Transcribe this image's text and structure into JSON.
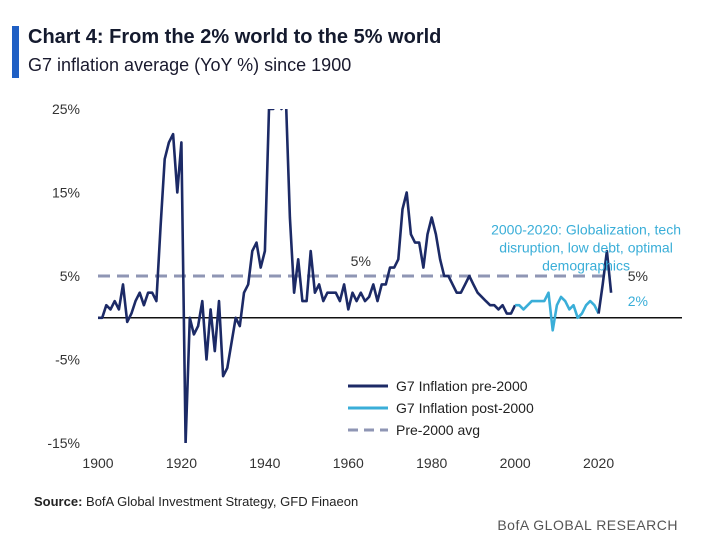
{
  "header": {
    "title": "Chart 4: From the 2% world to the 5% world",
    "subtitle": "G7 inflation average (YoY %) since 1900"
  },
  "footer": {
    "source_label": "Source:",
    "source_text": " BofA Global Investment Strategy, GFD Finaeon",
    "brand": "BofA GLOBAL RESEARCH"
  },
  "colors": {
    "pre2000": "#1c2a66",
    "post2000": "#3aaed8",
    "avg": "#8f96b4"
  },
  "chart_data": {
    "type": "line",
    "title": "Chart 4: From the 2% world to the 5% world",
    "subtitle": "G7 inflation average (YoY %) since 1900",
    "xlim": [
      1900,
      2040
    ],
    "ylim": [
      -15,
      25
    ],
    "x_ticks": [
      1900,
      1920,
      1940,
      1960,
      1980,
      2000,
      2020
    ],
    "x_tick_labels": [
      "1900",
      "1920",
      "1940",
      "1960",
      "1980",
      "2000",
      "2020"
    ],
    "y_ticks": [
      -15,
      -5,
      5,
      15,
      25
    ],
    "y_tick_labels": [
      "-15%",
      "-5%",
      "5%",
      "15%",
      "25%"
    ],
    "series": [
      {
        "name": "G7 Inflation pre-2000",
        "x": [
          1900,
          1901,
          1902,
          1903,
          1904,
          1905,
          1906,
          1907,
          1908,
          1909,
          1910,
          1911,
          1912,
          1913,
          1914,
          1915,
          1916,
          1917,
          1918,
          1919,
          1920,
          1921,
          1922,
          1923,
          1924,
          1925,
          1926,
          1927,
          1928,
          1929,
          1930,
          1931,
          1932,
          1933,
          1934,
          1935,
          1936,
          1937,
          1938,
          1939,
          1940,
          1941,
          1942,
          1943,
          1944,
          1945,
          1946,
          1947,
          1948,
          1949,
          1950,
          1951,
          1952,
          1953,
          1954,
          1955,
          1956,
          1957,
          1958,
          1959,
          1960,
          1961,
          1962,
          1963,
          1964,
          1965,
          1966,
          1967,
          1968,
          1969,
          1970,
          1971,
          1972,
          1973,
          1974,
          1975,
          1976,
          1977,
          1978,
          1979,
          1980,
          1981,
          1982,
          1983,
          1984,
          1985,
          1986,
          1987,
          1988,
          1989,
          1990,
          1991,
          1992,
          1993,
          1994,
          1995,
          1996,
          1997,
          1998,
          1999,
          2000
        ],
        "y": [
          0,
          0,
          1.5,
          1,
          2,
          1,
          4,
          -0.5,
          0.5,
          2,
          3,
          1.5,
          3,
          3,
          2,
          11,
          19,
          21,
          22,
          15,
          21,
          -15,
          0,
          -2,
          -1,
          2,
          -5,
          1,
          -4,
          2,
          -7,
          -6,
          -3,
          0,
          -1,
          3,
          4,
          8,
          9,
          6,
          8,
          25,
          25,
          26,
          25,
          27,
          12,
          3,
          7,
          2,
          2,
          8,
          3,
          4,
          2,
          3,
          3,
          3,
          2,
          4,
          1,
          3,
          2,
          3,
          2,
          2.5,
          4,
          2,
          4,
          4,
          6,
          6,
          7,
          13,
          15,
          10,
          9,
          9,
          6,
          10,
          12,
          10,
          7,
          5,
          5,
          4,
          3,
          3,
          4,
          5,
          4,
          3,
          2.5,
          2,
          1.5,
          1.5,
          1,
          1.5,
          0.5,
          0.5,
          1.5
        ]
      },
      {
        "name": "G7 Inflation post-2000",
        "x": [
          2000,
          2001,
          2002,
          2003,
          2004,
          2005,
          2006,
          2007,
          2008,
          2009,
          2010,
          2011,
          2012,
          2013,
          2014,
          2015,
          2016,
          2017,
          2018,
          2019,
          2020
        ],
        "y": [
          1.5,
          1.5,
          1,
          1.5,
          2,
          2,
          2,
          2,
          3,
          -1.5,
          1.5,
          2.5,
          2,
          1,
          1.5,
          0,
          0.5,
          1.5,
          2,
          1.5,
          0.5
        ]
      },
      {
        "name": "G7 Inflation pre-2000",
        "x": [
          2020,
          2021,
          2022,
          2023
        ],
        "y": [
          0.5,
          4,
          8,
          3
        ]
      },
      {
        "name": "Pre-2000 avg",
        "x": [
          1900,
          2023
        ],
        "y": [
          5,
          5
        ]
      }
    ],
    "annotations": [
      {
        "text": "5%",
        "x": 1963,
        "y": 5
      },
      {
        "text": "5%",
        "x": 2027,
        "y": 5
      },
      {
        "text": "2%",
        "x": 2027,
        "y": 2
      },
      {
        "lines": [
          "2000-2020: Globalization, tech",
          "disruption, low debt, optimal",
          "demographics"
        ],
        "x": 2017,
        "y": 10
      }
    ],
    "legend": [
      {
        "label": "G7 Inflation pre-2000"
      },
      {
        "label": "G7 Inflation post-2000"
      },
      {
        "label": "Pre-2000 avg"
      }
    ],
    "legend_position": "bottom-center",
    "grid": false
  }
}
